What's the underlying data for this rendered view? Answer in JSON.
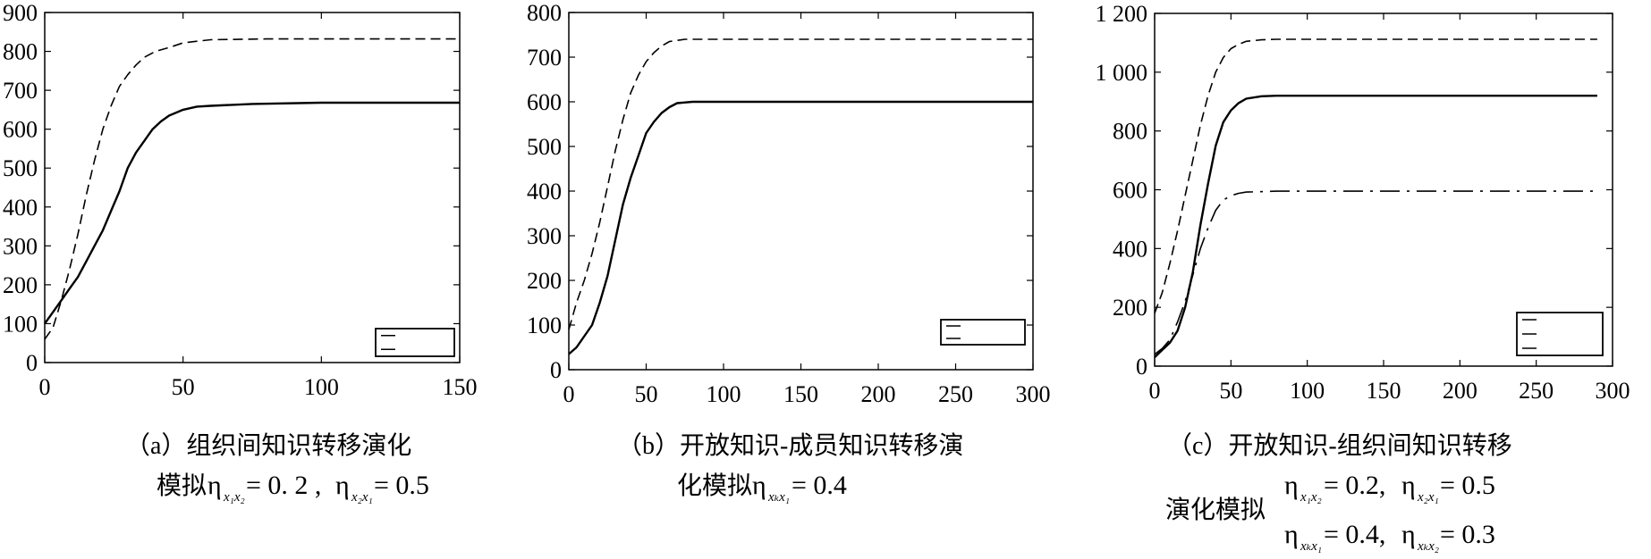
{
  "captions": {
    "a": {
      "line1": "（a）组织间知识转移演化",
      "line2_prefix": "模拟",
      "eq": [
        {
          "sub": "x₁x₂",
          "val": "= 0. 2 ,"
        },
        {
          "sub": "x₂x₁",
          "val": "= 0.5"
        }
      ]
    },
    "b": {
      "line1": "（b）开放知识-成员知识转移演",
      "line2_prefix": "化模拟",
      "eq": [
        {
          "sub": "xₖx₁",
          "val": "= 0.4"
        }
      ]
    },
    "c": {
      "line1": "（c）开放知识-组织间知识转移",
      "line2_prefix": "演化模拟",
      "eq_row1": [
        {
          "sub": "x₁x₂",
          "val": "= 0.2,"
        },
        {
          "sub": "x₂x₁",
          "val": "= 0.5"
        }
      ],
      "eq_row2": [
        {
          "sub": "xₖx₁",
          "val": "= 0.4,"
        },
        {
          "sub": "xₖx₂",
          "val": "= 0.3"
        }
      ]
    }
  },
  "eta_symbol": "η",
  "chart_data": [
    {
      "type": "line",
      "title": "",
      "xlim": [
        0,
        150
      ],
      "ylim": [
        0,
        900
      ],
      "xticks": [
        0,
        50,
        100,
        150
      ],
      "yticks": [
        0,
        100,
        200,
        300,
        400,
        500,
        600,
        700,
        800,
        900
      ],
      "ytick_labels": [
        "0",
        "100",
        "200",
        "300",
        "400",
        "500",
        "600",
        "700",
        "800",
        "900"
      ],
      "grid": false,
      "legend": {
        "position": "lower-right",
        "entries": [
          "",
          ""
        ]
      },
      "series": [
        {
          "style": "solid",
          "points": [
            [
              0,
              100
            ],
            [
              3,
              130
            ],
            [
              6,
              160
            ],
            [
              9,
              190
            ],
            [
              12,
              220
            ],
            [
              15,
              260
            ],
            [
              18,
              300
            ],
            [
              21,
              340
            ],
            [
              24,
              390
            ],
            [
              27,
              440
            ],
            [
              30,
              500
            ],
            [
              33,
              540
            ],
            [
              36,
              570
            ],
            [
              39,
              600
            ],
            [
              42,
              620
            ],
            [
              45,
              635
            ],
            [
              50,
              650
            ],
            [
              55,
              658
            ],
            [
              60,
              660
            ],
            [
              75,
              665
            ],
            [
              100,
              668
            ],
            [
              150,
              668
            ]
          ]
        },
        {
          "style": "dashed",
          "points": [
            [
              0,
              60
            ],
            [
              3,
              90
            ],
            [
              6,
              160
            ],
            [
              9,
              240
            ],
            [
              12,
              330
            ],
            [
              15,
              430
            ],
            [
              18,
              520
            ],
            [
              21,
              600
            ],
            [
              24,
              660
            ],
            [
              27,
              710
            ],
            [
              30,
              740
            ],
            [
              33,
              765
            ],
            [
              36,
              785
            ],
            [
              40,
              800
            ],
            [
              45,
              810
            ],
            [
              50,
              822
            ],
            [
              55,
              826
            ],
            [
              60,
              830
            ],
            [
              80,
              832
            ],
            [
              150,
              832
            ]
          ]
        }
      ]
    },
    {
      "type": "line",
      "title": "",
      "xlim": [
        0,
        300
      ],
      "ylim": [
        0,
        800
      ],
      "xticks": [
        0,
        50,
        100,
        150,
        200,
        250,
        300
      ],
      "yticks": [
        0,
        100,
        200,
        300,
        400,
        500,
        600,
        700,
        800
      ],
      "ytick_labels": [
        "0",
        "100",
        "200",
        "300",
        "400",
        "500",
        "600",
        "700",
        "800"
      ],
      "grid": false,
      "legend": {
        "position": "lower-right",
        "entries": [
          "",
          ""
        ]
      },
      "series": [
        {
          "style": "solid",
          "points": [
            [
              0,
              35
            ],
            [
              5,
              50
            ],
            [
              10,
              75
            ],
            [
              15,
              100
            ],
            [
              20,
              150
            ],
            [
              25,
              210
            ],
            [
              30,
              290
            ],
            [
              35,
              370
            ],
            [
              40,
              430
            ],
            [
              45,
              480
            ],
            [
              50,
              530
            ],
            [
              55,
              555
            ],
            [
              60,
              575
            ],
            [
              65,
              588
            ],
            [
              70,
              597
            ],
            [
              80,
              600
            ],
            [
              300,
              600
            ]
          ]
        },
        {
          "style": "dashed",
          "points": [
            [
              0,
              90
            ],
            [
              5,
              150
            ],
            [
              10,
              200
            ],
            [
              15,
              260
            ],
            [
              20,
              330
            ],
            [
              25,
              410
            ],
            [
              30,
              490
            ],
            [
              35,
              560
            ],
            [
              40,
              620
            ],
            [
              45,
              660
            ],
            [
              50,
              690
            ],
            [
              55,
              710
            ],
            [
              60,
              725
            ],
            [
              65,
              735
            ],
            [
              75,
              740
            ],
            [
              300,
              740
            ]
          ]
        }
      ]
    },
    {
      "type": "line",
      "title": "",
      "xlim": [
        0,
        300
      ],
      "ylim": [
        0,
        1200
      ],
      "xticks": [
        0,
        50,
        100,
        150,
        200,
        250,
        300
      ],
      "yticks": [
        0,
        200,
        400,
        600,
        800,
        1000,
        1200
      ],
      "ytick_labels": [
        "0",
        "200",
        "400",
        "600",
        "800",
        "1 000",
        "1 200"
      ],
      "grid": false,
      "legend": {
        "position": "lower-right",
        "entries": [
          "",
          "",
          ""
        ]
      },
      "series": [
        {
          "style": "dashed",
          "points": [
            [
              0,
              180
            ],
            [
              5,
              250
            ],
            [
              10,
              350
            ],
            [
              15,
              460
            ],
            [
              20,
              580
            ],
            [
              25,
              700
            ],
            [
              30,
              820
            ],
            [
              35,
              920
            ],
            [
              40,
              1000
            ],
            [
              45,
              1050
            ],
            [
              50,
              1080
            ],
            [
              55,
              1095
            ],
            [
              60,
              1105
            ],
            [
              70,
              1110
            ],
            [
              80,
              1112
            ],
            [
              200,
              1112
            ],
            [
              290,
              1112
            ]
          ]
        },
        {
          "style": "solid",
          "points": [
            [
              0,
              30
            ],
            [
              5,
              55
            ],
            [
              10,
              80
            ],
            [
              15,
              120
            ],
            [
              20,
              200
            ],
            [
              25,
              320
            ],
            [
              30,
              480
            ],
            [
              35,
              620
            ],
            [
              40,
              750
            ],
            [
              45,
              830
            ],
            [
              50,
              870
            ],
            [
              55,
              895
            ],
            [
              60,
              910
            ],
            [
              70,
              918
            ],
            [
              80,
              920
            ],
            [
              200,
              920
            ],
            [
              290,
              920
            ]
          ]
        },
        {
          "style": "dashdot",
          "points": [
            [
              0,
              40
            ],
            [
              5,
              60
            ],
            [
              10,
              90
            ],
            [
              15,
              150
            ],
            [
              20,
              220
            ],
            [
              25,
              310
            ],
            [
              30,
              400
            ],
            [
              35,
              470
            ],
            [
              40,
              530
            ],
            [
              45,
              565
            ],
            [
              50,
              580
            ],
            [
              55,
              588
            ],
            [
              60,
              592
            ],
            [
              80,
              595
            ],
            [
              200,
              595
            ],
            [
              290,
              595
            ]
          ]
        }
      ]
    }
  ]
}
